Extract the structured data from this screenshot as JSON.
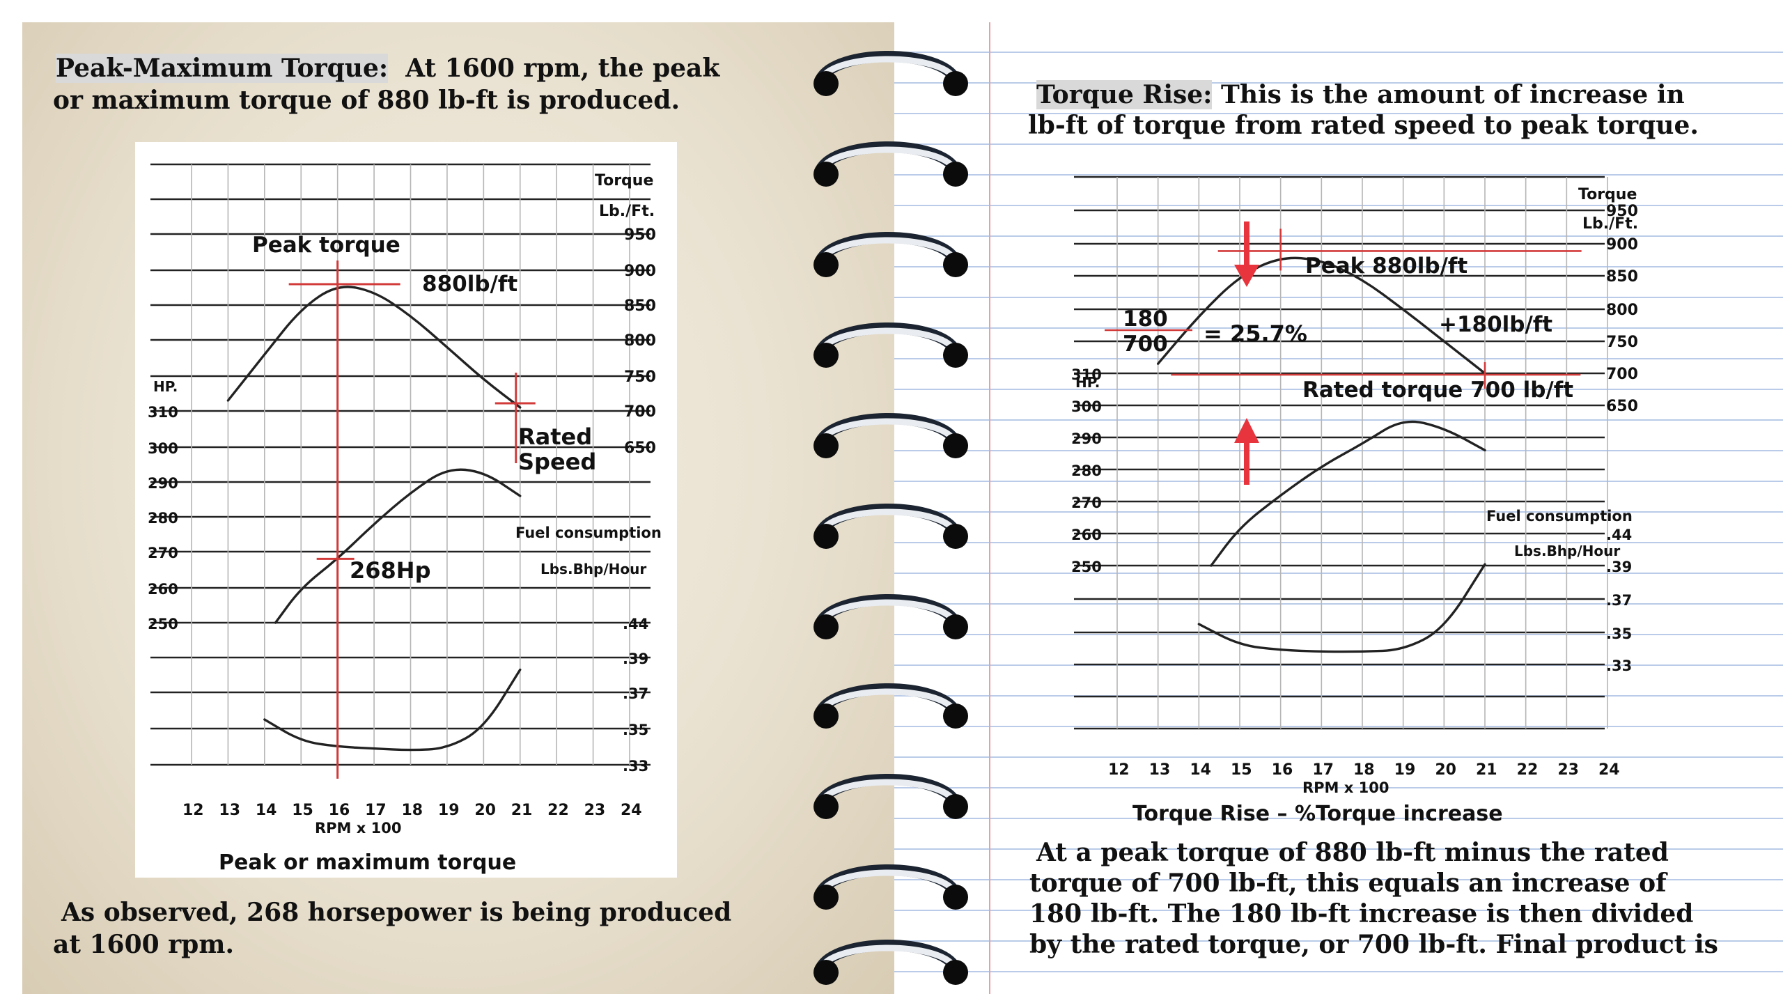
{
  "left_page": {
    "heading_label": "Peak-Maximum Torque:",
    "heading_rest": "At 1600 rpm, the peak",
    "heading_line2": "or maximum torque of 880 lb-ft is produced.",
    "footer_line1": "As observed, 268 horsepower is being produced",
    "footer_line2": "at 1600 rpm."
  },
  "right_page": {
    "heading_label": "Torque Rise:",
    "heading_rest": "This is the amount of increase in",
    "heading_line2": "lb-ft of torque from rated speed to peak torque.",
    "body_lines": [
      "At a peak torque of 880 lb-ft minus the rated",
      "torque of 700 lb-ft, this equals an increase of",
      "180 lb-ft. The 180 lb-ft increase is then divided",
      "by the rated torque, or 700 lb-ft. Final product is"
    ]
  },
  "colors": {
    "annotation_red": "#d23a3a",
    "arrow_red": "#e8343c",
    "curve": "#222222"
  },
  "chart_data": [
    {
      "type": "line",
      "title": "Peak or maximum torque",
      "xlabel": "RPM x 100",
      "x_ticks": [
        "12",
        "13",
        "14",
        "15",
        "16",
        "17",
        "18",
        "19",
        "20",
        "21",
        "22",
        "23",
        "24"
      ],
      "torque_axis": {
        "title_line1": "Torque",
        "title_line2": "Lb./Ft.",
        "ticks": [
          "950",
          "900",
          "850",
          "800",
          "750",
          "700",
          "650"
        ]
      },
      "hp_axis": {
        "title": "HP.",
        "ticks": [
          "310",
          "300",
          "290",
          "280",
          "270",
          "260",
          "250"
        ]
      },
      "fuel_axis": {
        "title_line1": "Fuel consumption",
        "title_line2": "Lbs.Bhp/Hour",
        "ticks": [
          ".44",
          ".39",
          ".37",
          ".35",
          ".33"
        ]
      },
      "series": [
        {
          "name": "Torque",
          "unit": "lb-ft",
          "x": [
            13,
            14,
            15,
            16,
            17,
            18,
            19,
            20,
            21
          ],
          "y": [
            715,
            780,
            845,
            880,
            870,
            835,
            790,
            745,
            705
          ]
        },
        {
          "name": "Horsepower",
          "unit": "Hp",
          "x": [
            14.3,
            15,
            16,
            17,
            18,
            19,
            20,
            21
          ],
          "y": [
            250,
            260,
            268,
            278,
            287,
            294,
            293,
            286
          ]
        },
        {
          "name": "Fuel consumption",
          "unit": "Lbs.Bhp/Hour",
          "x": [
            14,
            15,
            16,
            17,
            18,
            19,
            20,
            21
          ],
          "y": [
            0.355,
            0.343,
            0.34,
            0.339,
            0.338,
            0.339,
            0.35,
            0.383
          ]
        }
      ],
      "annotations": [
        "Peak torque",
        "880lb/ft",
        "Rated",
        "Speed",
        "268Hp"
      ]
    },
    {
      "type": "line",
      "title": "Torque Rise – %Torque increase",
      "xlabel": "RPM x 100",
      "x_ticks": [
        "12",
        "13",
        "14",
        "15",
        "16",
        "17",
        "18",
        "19",
        "20",
        "21",
        "22",
        "23",
        "24"
      ],
      "torque_axis": {
        "title_line1": "Torque",
        "title_line2": "Lb./Ft.",
        "ticks": [
          "950",
          "900",
          "850",
          "800",
          "750",
          "700",
          "650"
        ]
      },
      "hp_axis": {
        "title": "HP.",
        "ticks": [
          "310",
          "300",
          "290",
          "280",
          "270",
          "260",
          "250"
        ]
      },
      "fuel_axis": {
        "title_line1": "Fuel consumption",
        "title_line2": "Lbs.Bhp/Hour",
        "ticks": [
          ".44",
          ".39",
          ".37",
          ".35",
          ".33"
        ]
      },
      "series": [
        {
          "name": "Torque",
          "unit": "lb-ft",
          "x": [
            13,
            14,
            15,
            16,
            17,
            18,
            19,
            20,
            21
          ],
          "y": [
            715,
            790,
            850,
            880,
            875,
            845,
            800,
            750,
            700
          ]
        },
        {
          "name": "Horsepower",
          "unit": "Hp",
          "x": [
            14.3,
            15,
            16,
            17,
            18,
            19,
            20,
            21
          ],
          "y": [
            250,
            262,
            272,
            281,
            288,
            296,
            293,
            286
          ]
        },
        {
          "name": "Fuel consumption",
          "unit": "Lbs.Bhp/Hour",
          "x": [
            14,
            15,
            16,
            17,
            18,
            19,
            20,
            21
          ],
          "y": [
            0.355,
            0.342,
            0.339,
            0.338,
            0.338,
            0.339,
            0.352,
            0.392
          ]
        }
      ],
      "annotations": [
        "Peak 880lb/ft",
        "+180lb/ft",
        "Rated torque 700 lb/ft",
        "180",
        "700",
        "= 25.7%"
      ]
    }
  ]
}
